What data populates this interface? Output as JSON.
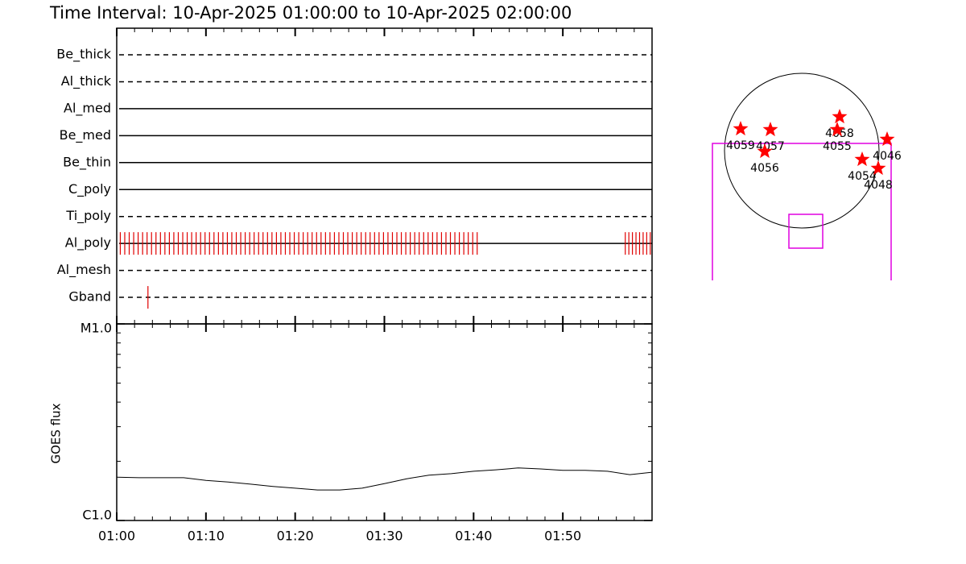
{
  "chart_data": [
    {
      "type": "timeline",
      "title": "Time Interval: 10-Apr-2025 01:00:00 to 10-Apr-2025 02:00:00",
      "xlim": [
        0,
        60
      ],
      "rows": [
        {
          "name": "Be_thick",
          "style": "dashed",
          "times": []
        },
        {
          "name": "Al_thick",
          "style": "dashed",
          "times": []
        },
        {
          "name": "Al_med",
          "style": "solid",
          "times": []
        },
        {
          "name": "Be_med",
          "style": "solid",
          "times": []
        },
        {
          "name": "Be_thin",
          "style": "solid",
          "times": []
        },
        {
          "name": "C_poly",
          "style": "solid",
          "times": []
        },
        {
          "name": "Ti_poly",
          "style": "dashed",
          "times": []
        },
        {
          "name": "Al_poly",
          "style": "solid",
          "color": "#e00000",
          "times": [
            0.4,
            0.9,
            1.4,
            1.9,
            2.4,
            2.9,
            3.4,
            3.9,
            4.4,
            4.9,
            5.4,
            5.9,
            6.4,
            6.9,
            7.4,
            7.9,
            8.4,
            8.9,
            9.4,
            9.9,
            10.4,
            10.9,
            11.4,
            11.9,
            12.4,
            12.9,
            13.4,
            13.9,
            14.4,
            14.9,
            15.4,
            15.9,
            16.4,
            16.9,
            17.4,
            17.9,
            18.4,
            18.9,
            19.4,
            19.9,
            20.4,
            20.9,
            21.4,
            21.9,
            22.4,
            22.9,
            23.4,
            23.9,
            24.4,
            24.9,
            25.4,
            25.9,
            26.4,
            26.9,
            27.4,
            27.9,
            28.4,
            28.9,
            29.4,
            29.9,
            30.4,
            30.9,
            31.4,
            31.9,
            32.4,
            32.9,
            33.4,
            33.9,
            34.4,
            34.9,
            35.4,
            35.9,
            36.4,
            36.9,
            37.4,
            37.9,
            38.4,
            38.9,
            39.4,
            39.9,
            40.4,
            57.0,
            57.4,
            57.8,
            58.2,
            58.6,
            59.0,
            59.4,
            59.8
          ]
        },
        {
          "name": "Al_mesh",
          "style": "dashed",
          "times": []
        },
        {
          "name": "Gband",
          "style": "dashed",
          "color": "#e00000",
          "times": [
            3.5
          ]
        }
      ]
    },
    {
      "type": "line",
      "y_label": "GOES flux",
      "log_y": true,
      "xlim": [
        0,
        60
      ],
      "xticks": [
        {
          "value": 0,
          "label": "01:00"
        },
        {
          "value": 10,
          "label": "01:10"
        },
        {
          "value": 20,
          "label": "01:20"
        },
        {
          "value": 30,
          "label": "01:30"
        },
        {
          "value": 40,
          "label": "01:40"
        },
        {
          "value": 50,
          "label": "01:50"
        }
      ],
      "xminorticks": [
        2,
        4,
        6,
        8,
        12,
        14,
        16,
        18,
        22,
        24,
        26,
        28,
        32,
        34,
        36,
        38,
        42,
        44,
        46,
        48,
        52,
        54,
        56,
        58
      ],
      "ylim": [
        1e-06,
        1e-05
      ],
      "yticks": [
        {
          "value": 1e-06,
          "label": "C1.0"
        },
        {
          "value": 1e-05,
          "label": "M1.0"
        }
      ],
      "yminorticks": [
        2e-06,
        3e-06,
        4e-06,
        5e-06,
        6e-06,
        7e-06,
        8e-06,
        9e-06
      ],
      "x": [
        0,
        2.5,
        5,
        7.5,
        10,
        12.5,
        15,
        17.5,
        20,
        22.5,
        25,
        27.5,
        30,
        32.5,
        35,
        37.5,
        40,
        42.5,
        45,
        47.5,
        50,
        52.5,
        55,
        57.5,
        60
      ],
      "values": [
        1.66e-06,
        1.65e-06,
        1.65e-06,
        1.65e-06,
        1.6e-06,
        1.57e-06,
        1.53e-06,
        1.49e-06,
        1.46e-06,
        1.43e-06,
        1.43e-06,
        1.46e-06,
        1.54e-06,
        1.63e-06,
        1.7e-06,
        1.73e-06,
        1.78e-06,
        1.81e-06,
        1.85e-06,
        1.83e-06,
        1.8e-06,
        1.8e-06,
        1.78e-06,
        1.71e-06,
        1.76e-06
      ],
      "color": "#000000"
    }
  ],
  "sun_map": {
    "regions": [
      "4059",
      "4057",
      "4056",
      "4058",
      "4055",
      "4046",
      "4054",
      "4048"
    ],
    "color": "#ff0000"
  }
}
